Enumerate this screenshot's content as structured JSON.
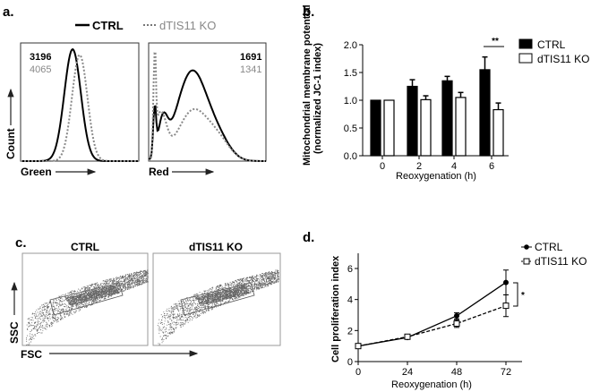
{
  "panels": {
    "a": {
      "label": "a.",
      "legend": [
        "CTRL",
        "dTIS11 KO"
      ],
      "ylabel": "Count",
      "green": {
        "xlabel": "Green",
        "values": [
          "3196",
          "4065"
        ]
      },
      "red": {
        "xlabel": "Red",
        "values": [
          "1691",
          "1341"
        ]
      }
    },
    "c": {
      "label": "c.",
      "titles": [
        "CTRL",
        "dTIS11 KO"
      ],
      "ylabel": "SSC",
      "xlabel": "FSC"
    }
  },
  "chart_data": [
    {
      "panel": "b.",
      "type": "bar",
      "categories": [
        "0",
        "2",
        "4",
        "6"
      ],
      "series": [
        {
          "name": "CTRL",
          "values": [
            1.0,
            1.25,
            1.35,
            1.55
          ],
          "errors": [
            0,
            0.12,
            0.08,
            0.23
          ],
          "color": "#000000"
        },
        {
          "name": "dTIS11 KO",
          "values": [
            1.0,
            1.01,
            1.05,
            0.83
          ],
          "errors": [
            0,
            0.07,
            0.09,
            0.12
          ],
          "color": "#ffffff"
        }
      ],
      "xlabel": "Reoxygenation (h)",
      "ylabel": [
        "Mitochondrial membrane potential",
        "(normalized JC-1 index)"
      ],
      "ylim": [
        0,
        2.0
      ],
      "yticks": [
        "0.0",
        "0.5",
        "1.0",
        "1.5",
        "2.0"
      ],
      "annotation": "**",
      "legend": "right"
    },
    {
      "panel": "d.",
      "type": "line",
      "x": [
        0,
        24,
        48,
        72
      ],
      "xticks": [
        "0",
        "24",
        "48",
        "72"
      ],
      "series": [
        {
          "name": "CTRL",
          "values": [
            1.0,
            1.55,
            2.95,
            5.1
          ],
          "errors": [
            0.05,
            0.08,
            0.2,
            0.8
          ],
          "marker": "filled-circle",
          "dash": false
        },
        {
          "name": "dTIS11 KO",
          "values": [
            1.0,
            1.6,
            2.45,
            3.6
          ],
          "errors": [
            0.05,
            0.08,
            0.25,
            0.7
          ],
          "marker": "open-square",
          "dash": true
        }
      ],
      "xlabel": "Reoxygenation (h)",
      "ylabel": "Cell proliferation index",
      "ylim": [
        0,
        7
      ],
      "yticks": [
        "0",
        "2",
        "4",
        "6"
      ],
      "annotation": "*",
      "legend": "top-right"
    }
  ]
}
